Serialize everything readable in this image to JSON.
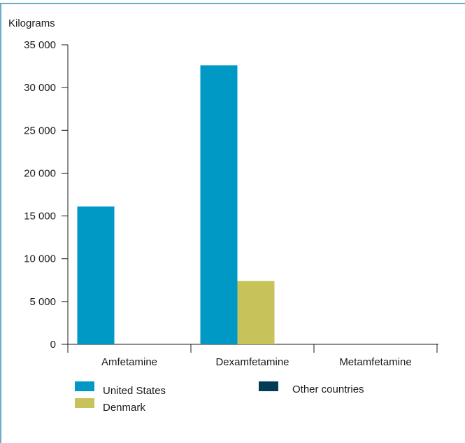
{
  "colors": {
    "frame": "#3a8fb5",
    "axis": "#1a1a1a"
  },
  "chart_data": {
    "type": "bar",
    "title": "",
    "ylabel": "Kilograms",
    "xlabel": "",
    "categories": [
      "Amfetamine",
      "Dexamfetamine",
      "Metamfetamine"
    ],
    "ylim": [
      0,
      35000
    ],
    "yticks": [
      0,
      5000,
      10000,
      15000,
      20000,
      25000,
      30000,
      35000
    ],
    "ytick_labels": [
      "0",
      "5 000",
      "10 000",
      "15 000",
      "20 000",
      "25 000",
      "30 000",
      "35 000"
    ],
    "grid": false,
    "legend_position": "bottom",
    "series": [
      {
        "name": "United States",
        "color": "#0099c6",
        "values": [
          16100,
          32600,
          0
        ]
      },
      {
        "name": "Denmark",
        "color": "#c8c25a",
        "values": [
          0,
          7400,
          0
        ]
      },
      {
        "name": "Other countries",
        "color": "#023b53",
        "values": [
          0,
          0,
          0
        ]
      }
    ]
  }
}
